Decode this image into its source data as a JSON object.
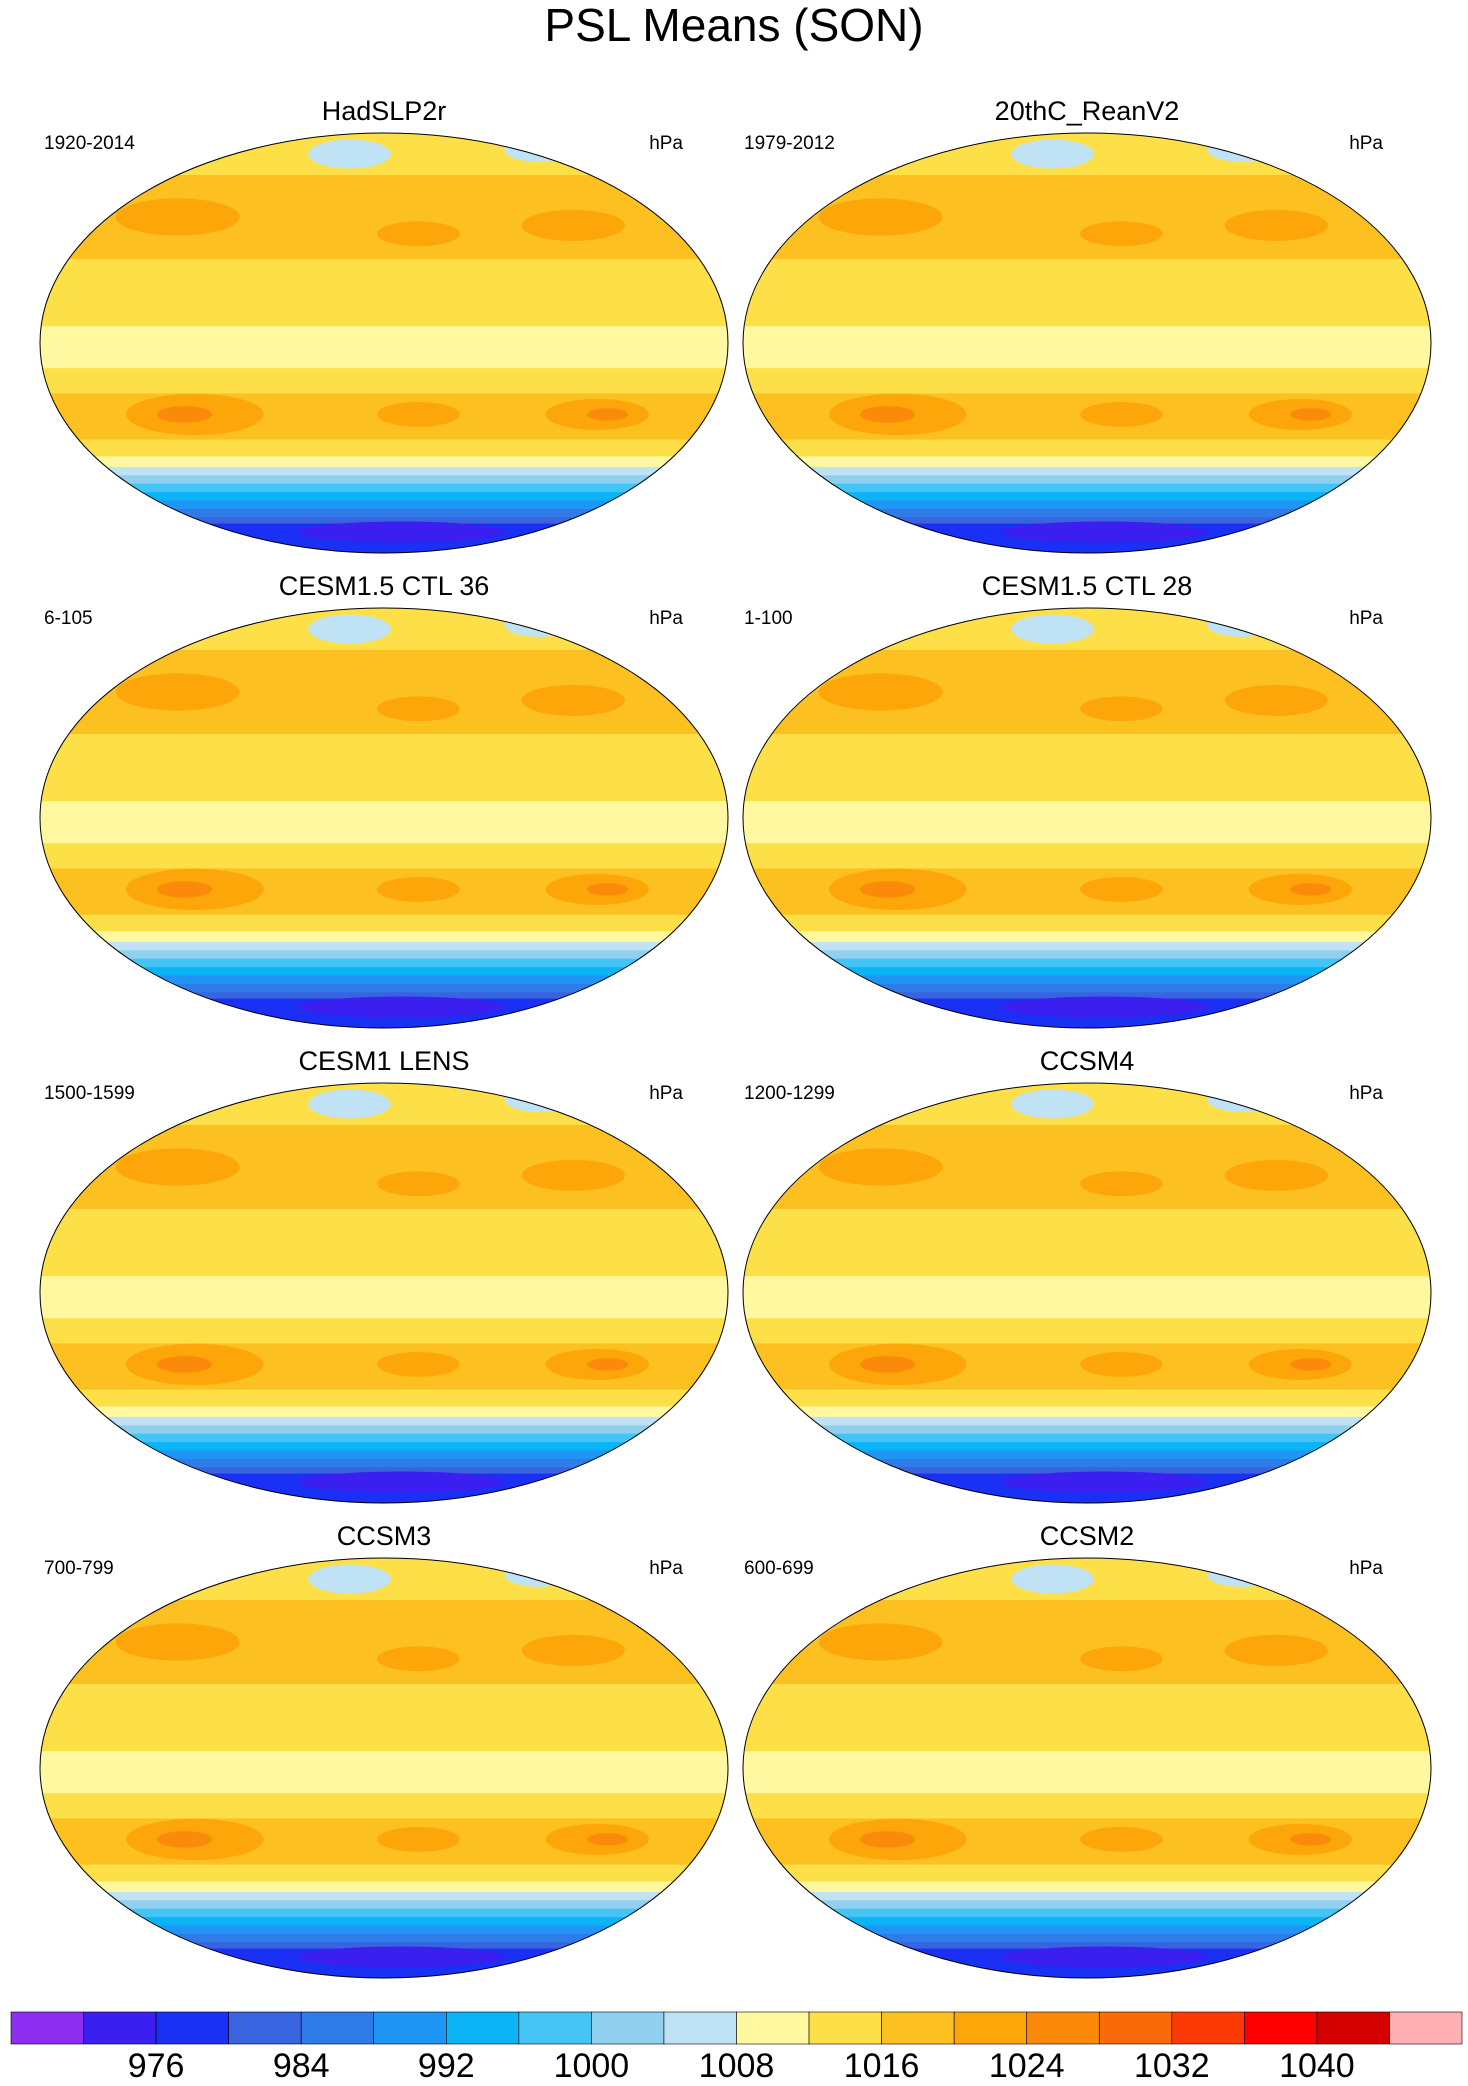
{
  "title": "PSL Means (SON)",
  "panels": [
    {
      "title": "HadSLP2r",
      "period": "1920-2014",
      "units": "hPa"
    },
    {
      "title": "20thC_ReanV2",
      "period": "1979-2012",
      "units": "hPa"
    },
    {
      "title": "CESM1.5 CTL 36",
      "period": "6-105",
      "units": "hPa"
    },
    {
      "title": "CESM1.5 CTL 28",
      "period": "1-100",
      "units": "hPa"
    },
    {
      "title": "CESM1 LENS",
      "period": "1500-1599",
      "units": "hPa"
    },
    {
      "title": "CCSM4",
      "period": "1200-1299",
      "units": "hPa"
    },
    {
      "title": "CCSM3",
      "period": "700-799",
      "units": "hPa"
    },
    {
      "title": "CCSM2",
      "period": "600-699",
      "units": "hPa"
    }
  ],
  "colorbar": {
    "colors": [
      "#8d2ff0",
      "#3a1ff0",
      "#1a30f5",
      "#3a63e0",
      "#2f7be8",
      "#1f96f5",
      "#0ab4f5",
      "#43c4f5",
      "#90d0ee",
      "#bfe3f5",
      "#fff8a0",
      "#fde048",
      "#fcc020",
      "#fca60a",
      "#fb8a0a",
      "#fb6a08",
      "#fb3a05",
      "#ff0000",
      "#d50000",
      "#dd4040",
      "#ffb0b5"
    ],
    "labels": [
      976,
      984,
      992,
      1000,
      1008,
      1016,
      1024,
      1032,
      1040
    ]
  }
}
